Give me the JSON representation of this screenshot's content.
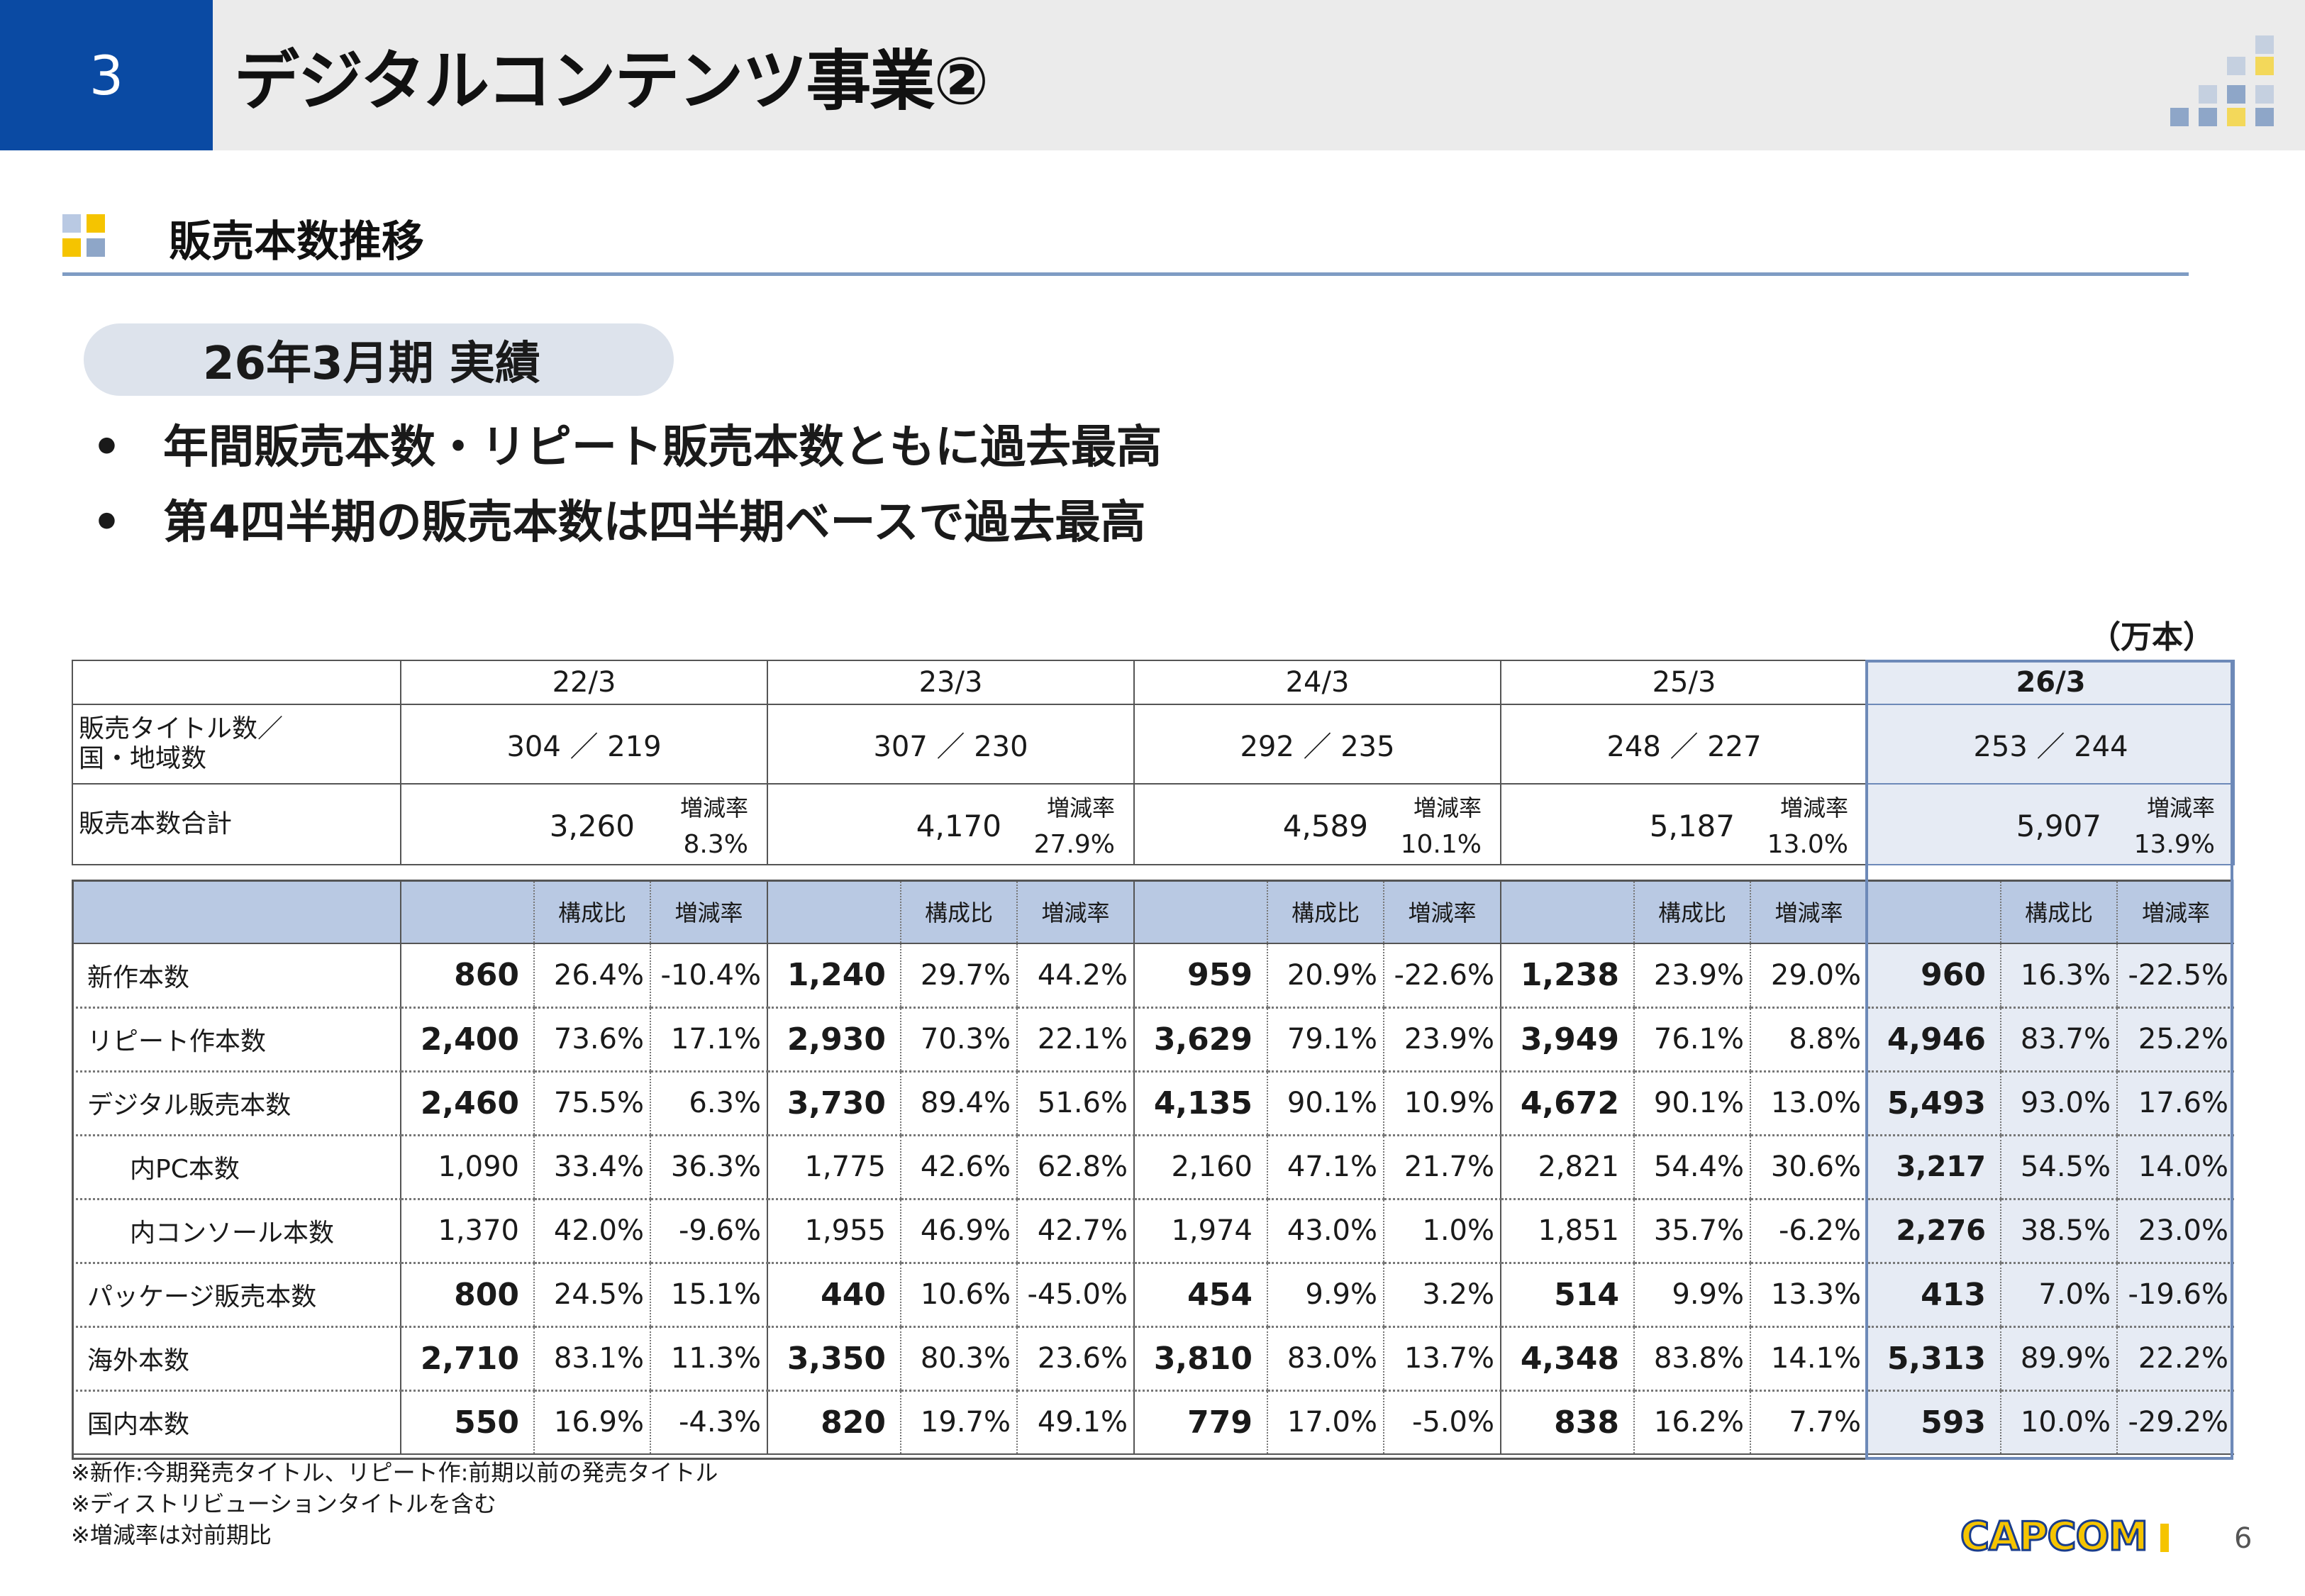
{
  "header": {
    "section_number": "3",
    "title": "デジタルコンテンツ事業②"
  },
  "subtitle": "販売本数推移",
  "pill": "26年3月期 実績",
  "bullets": [
    "年間販売本数・リピート販売本数ともに過去最高",
    "第4四半期の販売本数は四半期ベースで過去最高"
  ],
  "unit": "（万本）",
  "summary": {
    "periods": [
      "22/3",
      "23/3",
      "24/3",
      "25/3",
      "26/3"
    ],
    "titles_label": "販売タイトル数／\n国・地域数",
    "titles": [
      "304 ／ 219",
      "307 ／ 230",
      "292 ／ 235",
      "248 ／ 227",
      "253 ／ 244"
    ],
    "total_label": "販売本数合計",
    "rate_label": "増減率",
    "totals": [
      "3,260",
      "4,170",
      "4,589",
      "5,187",
      "5,907"
    ],
    "total_rates": [
      "8.3%",
      "27.9%",
      "10.1%",
      "13.0%",
      "13.9%"
    ]
  },
  "detail": {
    "col_ratio": "構成比",
    "col_rate": "増減率",
    "rows": [
      {
        "label": "新作本数",
        "indent": false,
        "bold": true,
        "cells": [
          [
            "860",
            "26.4%",
            "-10.4%"
          ],
          [
            "1,240",
            "29.7%",
            "44.2%"
          ],
          [
            "959",
            "20.9%",
            "-22.6%"
          ],
          [
            "1,238",
            "23.9%",
            "29.0%"
          ],
          [
            "960",
            "16.3%",
            "-22.5%"
          ]
        ]
      },
      {
        "label": "リピート作本数",
        "indent": false,
        "bold": true,
        "cells": [
          [
            "2,400",
            "73.6%",
            "17.1%"
          ],
          [
            "2,930",
            "70.3%",
            "22.1%"
          ],
          [
            "3,629",
            "79.1%",
            "23.9%"
          ],
          [
            "3,949",
            "76.1%",
            "8.8%"
          ],
          [
            "4,946",
            "83.7%",
            "25.2%"
          ]
        ]
      },
      {
        "label": "デジタル販売本数",
        "indent": false,
        "bold": true,
        "cells": [
          [
            "2,460",
            "75.5%",
            "6.3%"
          ],
          [
            "3,730",
            "89.4%",
            "51.6%"
          ],
          [
            "4,135",
            "90.1%",
            "10.9%"
          ],
          [
            "4,672",
            "90.1%",
            "13.0%"
          ],
          [
            "5,493",
            "93.0%",
            "17.6%"
          ]
        ]
      },
      {
        "label": "内PC本数",
        "indent": true,
        "bold": false,
        "cells": [
          [
            "1,090",
            "33.4%",
            "36.3%"
          ],
          [
            "1,775",
            "42.6%",
            "62.8%"
          ],
          [
            "2,160",
            "47.1%",
            "21.7%"
          ],
          [
            "2,821",
            "54.4%",
            "30.6%"
          ],
          [
            "3,217",
            "54.5%",
            "14.0%"
          ]
        ]
      },
      {
        "label": "内コンソール本数",
        "indent": true,
        "bold": false,
        "cells": [
          [
            "1,370",
            "42.0%",
            "-9.6%"
          ],
          [
            "1,955",
            "46.9%",
            "42.7%"
          ],
          [
            "1,974",
            "43.0%",
            "1.0%"
          ],
          [
            "1,851",
            "35.7%",
            "-6.2%"
          ],
          [
            "2,276",
            "38.5%",
            "23.0%"
          ]
        ]
      },
      {
        "label": "パッケージ販売本数",
        "indent": false,
        "bold": true,
        "cells": [
          [
            "800",
            "24.5%",
            "15.1%"
          ],
          [
            "440",
            "10.6%",
            "-45.0%"
          ],
          [
            "454",
            "9.9%",
            "3.2%"
          ],
          [
            "514",
            "9.9%",
            "13.3%"
          ],
          [
            "413",
            "7.0%",
            "-19.6%"
          ]
        ]
      },
      {
        "label": "海外本数",
        "indent": false,
        "bold": true,
        "cells": [
          [
            "2,710",
            "83.1%",
            "11.3%"
          ],
          [
            "3,350",
            "80.3%",
            "23.6%"
          ],
          [
            "3,810",
            "83.0%",
            "13.7%"
          ],
          [
            "4,348",
            "83.8%",
            "14.1%"
          ],
          [
            "5,313",
            "89.9%",
            "22.2%"
          ]
        ]
      },
      {
        "label": "国内本数",
        "indent": false,
        "bold": true,
        "cells": [
          [
            "550",
            "16.9%",
            "-4.3%"
          ],
          [
            "820",
            "19.7%",
            "49.1%"
          ],
          [
            "779",
            "17.0%",
            "-5.0%"
          ],
          [
            "838",
            "16.2%",
            "7.7%"
          ],
          [
            "593",
            "10.0%",
            "-29.2%"
          ]
        ]
      }
    ]
  },
  "notes": [
    "※新作:今期発売タイトル、リピート作:前期以前の発売タイトル",
    "※ディストリビューションタイトルを含む",
    "※増減率は対前期比"
  ],
  "logo": "CAPCOM",
  "page_number": "6",
  "colors": {
    "section_blue": "#0a4aa3",
    "highlight": "#e6ebf4",
    "header_fill": "#b9c9e3",
    "logo_yellow": "#f5c400"
  }
}
